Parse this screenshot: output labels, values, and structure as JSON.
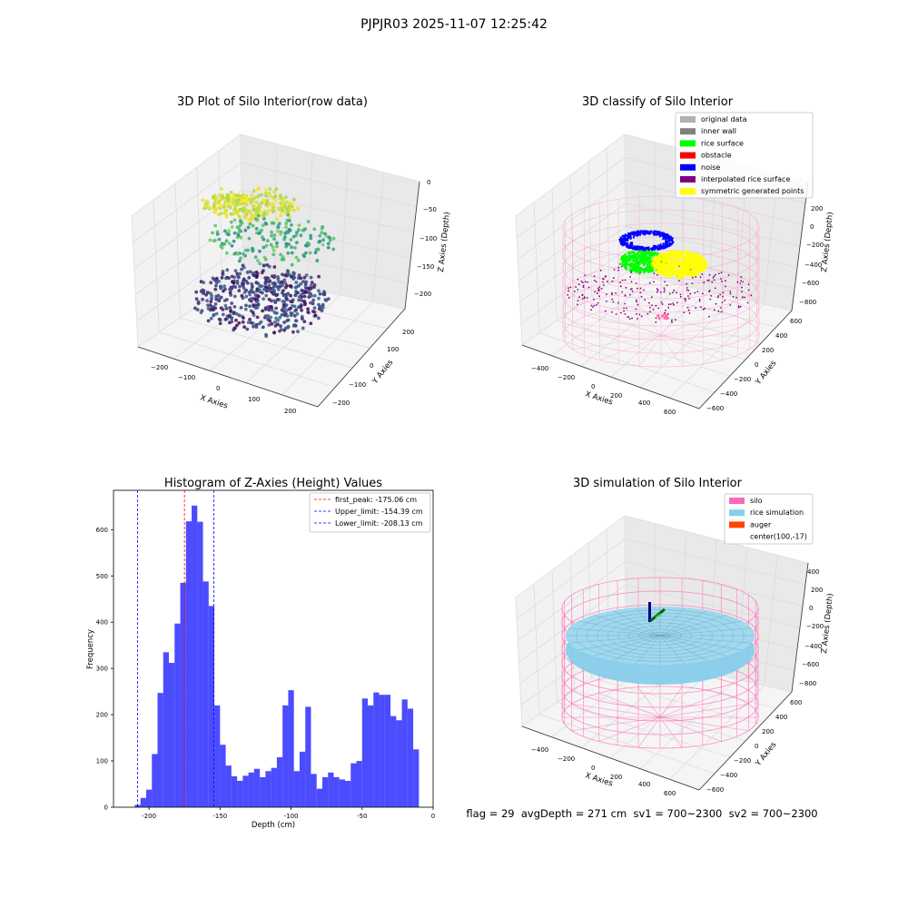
{
  "suptitle": "PJPJR03 2025-11-07 12:25:42",
  "status_line": "flag = 29  avgDepth = 271 cm  sv1 = 700~2300  sv2 = 700~2300",
  "chart_data": [
    {
      "type": "scatter",
      "projection": "3d",
      "title": "3D Plot of Silo Interior(row data)",
      "xlabel": "X Axies",
      "ylabel": "Y Axies",
      "zlabel": "Z Axies (Depth)",
      "x_ticks": [
        "−200",
        "−100",
        "0",
        "100",
        "200"
      ],
      "y_ticks": [
        "−200",
        "−100",
        "0",
        "100",
        "200"
      ],
      "z_ticks": [
        "0",
        "−50",
        "−100",
        "−150",
        "−200"
      ],
      "colormap": "viridis",
      "grid": true
    },
    {
      "type": "scatter",
      "projection": "3d",
      "title": "3D classify of Silo Interior",
      "xlabel": "X Axies",
      "ylabel": "Y Axies",
      "zlabel": "Z Axies (Depth)",
      "x_ticks": [
        "−400",
        "−200",
        "0",
        "200",
        "400",
        "600"
      ],
      "y_ticks": [
        "−600",
        "−400",
        "−200",
        "0",
        "200",
        "400",
        "600"
      ],
      "z_ticks": [
        "200",
        "0",
        "−200",
        "−400",
        "−600",
        "−800"
      ],
      "legend_position": "top-right",
      "legend": [
        {
          "label": "original data",
          "color": "#b0b0b0"
        },
        {
          "label": "inner wall",
          "color": "#808080"
        },
        {
          "label": "rice surface",
          "color": "#00ff00"
        },
        {
          "label": "obstacle",
          "color": "#ff0000"
        },
        {
          "label": "noise",
          "color": "#0000ff"
        },
        {
          "label": "interpolated rice surface",
          "color": "#800080"
        },
        {
          "label": "symmetric generated points",
          "color": "#ffff00"
        }
      ],
      "grid": true
    },
    {
      "type": "bar",
      "title": "Histogram of Z-Axies (Height) Values",
      "xlabel": "Depth (cm)",
      "ylabel": "Frequency",
      "xlim": [
        -225,
        0
      ],
      "ylim": [
        0,
        685
      ],
      "x_ticks": [
        -200,
        -150,
        -100,
        -50,
        0
      ],
      "y_ticks": [
        0,
        100,
        200,
        300,
        400,
        500,
        600
      ],
      "bin_width": 4,
      "bin_start": -210,
      "values": [
        5,
        20,
        38,
        115,
        247,
        335,
        312,
        397,
        485,
        618,
        652,
        617,
        488,
        435,
        220,
        135,
        90,
        67,
        57,
        68,
        75,
        83,
        65,
        78,
        85,
        108,
        220,
        253,
        78,
        120,
        217,
        72,
        40,
        65,
        75,
        65,
        60,
        57,
        95,
        100,
        235,
        220,
        248,
        243,
        243,
        197,
        188,
        233,
        213,
        125
      ],
      "bar_color": "#0000ff",
      "bar_alpha": 0.7,
      "lines": [
        {
          "label": "first_peak: -175.06 cm",
          "x": -175.06,
          "color": "#ff0000"
        },
        {
          "label": "Upper_limit: -154.39 cm",
          "x": -154.39,
          "color": "#0000ff"
        },
        {
          "label": "Lower_limit: -208.13 cm",
          "x": -208.13,
          "color": "#0000ff"
        }
      ],
      "legend_position": "top-right"
    },
    {
      "type": "surface",
      "projection": "3d",
      "title": "3D simulation of Silo Interior",
      "xlabel": "X Axies",
      "ylabel": "Y Axies",
      "zlabel": "Z Axies (Depth)",
      "x_ticks": [
        "−400",
        "−200",
        "0",
        "200",
        "400",
        "600"
      ],
      "y_ticks": [
        "−600",
        "−400",
        "−200",
        "0",
        "200",
        "400",
        "600"
      ],
      "z_ticks": [
        "400",
        "200",
        "0",
        "−200",
        "−400",
        "−600",
        "−800"
      ],
      "legend_position": "top-right",
      "legend": [
        {
          "label": "silo",
          "color": "#ff69b4"
        },
        {
          "label": "rice simulation",
          "color": "#87ceeb"
        },
        {
          "label": "auger",
          "color": "#ff4500"
        },
        {
          "label": "center(100,-17)",
          "color": ""
        }
      ],
      "grid": true
    }
  ]
}
